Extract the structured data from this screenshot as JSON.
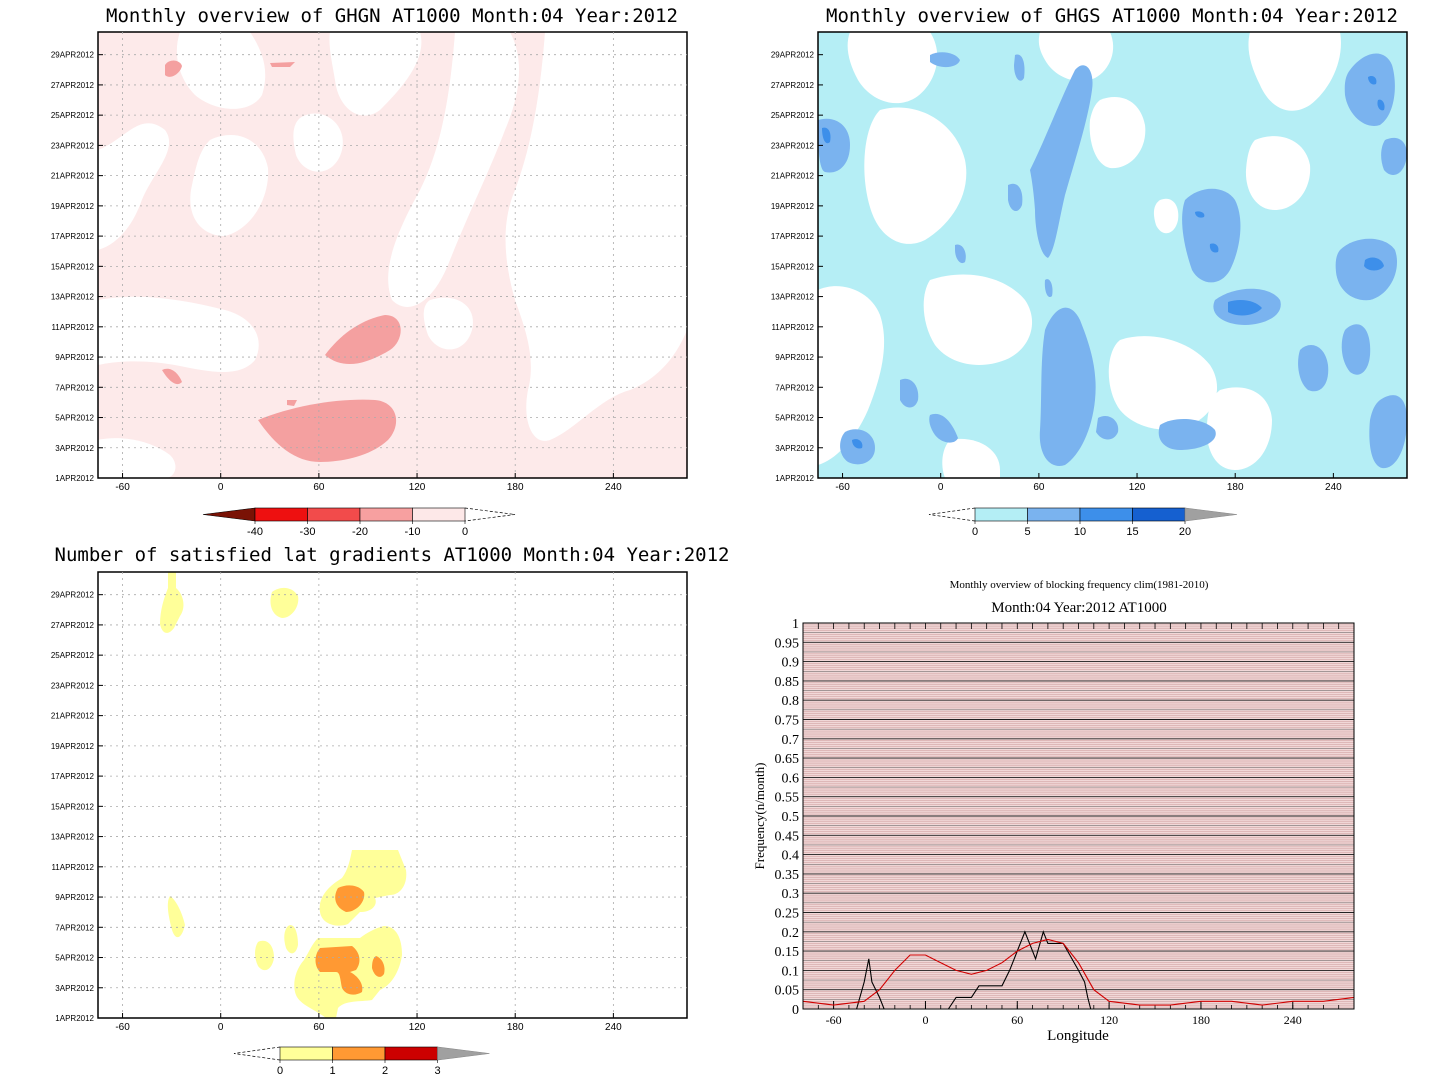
{
  "panels": {
    "ghgn": {
      "title": "Monthly overview of GHGN AT1000 Month:04 Year:2012",
      "colorbar": {
        "labels": [
          "-40",
          "-30",
          "-20",
          "-10",
          "0"
        ],
        "colors": [
          "#7a1205",
          "#ee1010",
          "#f24b4b",
          "#f7a0a0",
          "#fde8e8"
        ]
      }
    },
    "ghgs": {
      "title": "Monthly overview of GHGS AT1000 Month:04 Year:2012",
      "colorbar": {
        "labels": [
          "0",
          "5",
          "10",
          "15",
          "20"
        ],
        "colors": [
          "#b4eef5",
          "#7ab3ef",
          "#3d8fea",
          "#1560d0",
          "#a0a0a0"
        ]
      }
    },
    "lat": {
      "title": "Number of satisfied lat gradients AT1000 Month:04 Year:2012",
      "colorbar": {
        "labels": [
          "0",
          "1",
          "2",
          "3"
        ],
        "colors": [
          "#ffff99",
          "#ff9933",
          "#cc0000",
          "#a0a0a0"
        ]
      }
    },
    "freq": {
      "title": "Monthly overview of blocking frequency clim(1981-2010)",
      "subtitle": "Month:04 Year:2012  AT1000"
    }
  },
  "axes": {
    "x_ticks": [
      "-60",
      "0",
      "60",
      "120",
      "180",
      "240"
    ],
    "y_ticks": [
      "1APR2012",
      "3APR2012",
      "5APR2012",
      "7APR2012",
      "9APR2012",
      "11APR2012",
      "13APR2012",
      "15APR2012",
      "17APR2012",
      "19APR2012",
      "21APR2012",
      "23APR2012",
      "25APR2012",
      "27APR2012",
      "29APR2012"
    ]
  },
  "chart_data": [
    {
      "type": "heatmap",
      "title": "Monthly overview of GHGN AT1000 Month:04 Year:2012",
      "x_range": [
        -75,
        285
      ],
      "y_range": [
        "1APR2012",
        "30APR2012"
      ],
      "levels": [
        -40,
        -30,
        -20,
        -10,
        0
      ],
      "grid": true
    },
    {
      "type": "heatmap",
      "title": "Monthly overview of GHGS AT1000 Month:04 Year:2012",
      "x_range": [
        -75,
        285
      ],
      "y_range": [
        "1APR2012",
        "30APR2012"
      ],
      "levels": [
        0,
        5,
        10,
        15,
        20
      ],
      "grid": false
    },
    {
      "type": "heatmap",
      "title": "Number of satisfied lat gradients AT1000 Month:04 Year:2012",
      "x_range": [
        -75,
        285
      ],
      "y_range": [
        "1APR2012",
        "30APR2012"
      ],
      "levels": [
        0,
        1,
        2,
        3
      ],
      "grid": true
    },
    {
      "type": "line",
      "title": "Monthly overview of blocking frequency clim(1981-2010)",
      "subtitle": "Month:04 Year:2012  AT1000",
      "xlabel": "Longitude",
      "ylabel": "Frequency(n/month)",
      "xlim": [
        -80,
        280
      ],
      "ylim": [
        0,
        1
      ],
      "x_ticks": [
        -60,
        0,
        60,
        120,
        180,
        240
      ],
      "y_ticks": [
        0,
        0.05,
        0.1,
        0.15,
        0.2,
        0.25,
        0.3,
        0.35,
        0.4,
        0.45,
        0.5,
        0.55,
        0.6,
        0.65,
        0.7,
        0.75,
        0.8,
        0.85,
        0.9,
        0.95,
        1
      ],
      "series": [
        {
          "color": "#000000",
          "x": [
            -80,
            -50,
            -45,
            -40,
            -37,
            -35,
            -30,
            -27,
            -25,
            15,
            20,
            30,
            35,
            50,
            55,
            65,
            68,
            72,
            77,
            80,
            85,
            90,
            100,
            104,
            106,
            108,
            110,
            280
          ],
          "y": [
            0,
            0,
            0,
            0.07,
            0.13,
            0.07,
            0.03,
            0,
            0,
            0,
            0.03,
            0.03,
            0.06,
            0.06,
            0.1,
            0.2,
            0.17,
            0.13,
            0.2,
            0.17,
            0.17,
            0.17,
            0.1,
            0.07,
            0.03,
            0,
            0,
            0
          ]
        },
        {
          "color": "#d00000",
          "x": [
            -80,
            -60,
            -40,
            -30,
            -20,
            -10,
            0,
            10,
            20,
            30,
            40,
            50,
            60,
            70,
            80,
            90,
            100,
            110,
            120,
            140,
            160,
            180,
            200,
            220,
            240,
            260,
            280
          ],
          "y": [
            0.02,
            0.01,
            0.02,
            0.05,
            0.1,
            0.14,
            0.14,
            0.12,
            0.1,
            0.09,
            0.1,
            0.12,
            0.15,
            0.17,
            0.18,
            0.17,
            0.12,
            0.05,
            0.02,
            0.01,
            0.01,
            0.02,
            0.02,
            0.01,
            0.02,
            0.02,
            0.03
          ]
        }
      ]
    }
  ]
}
